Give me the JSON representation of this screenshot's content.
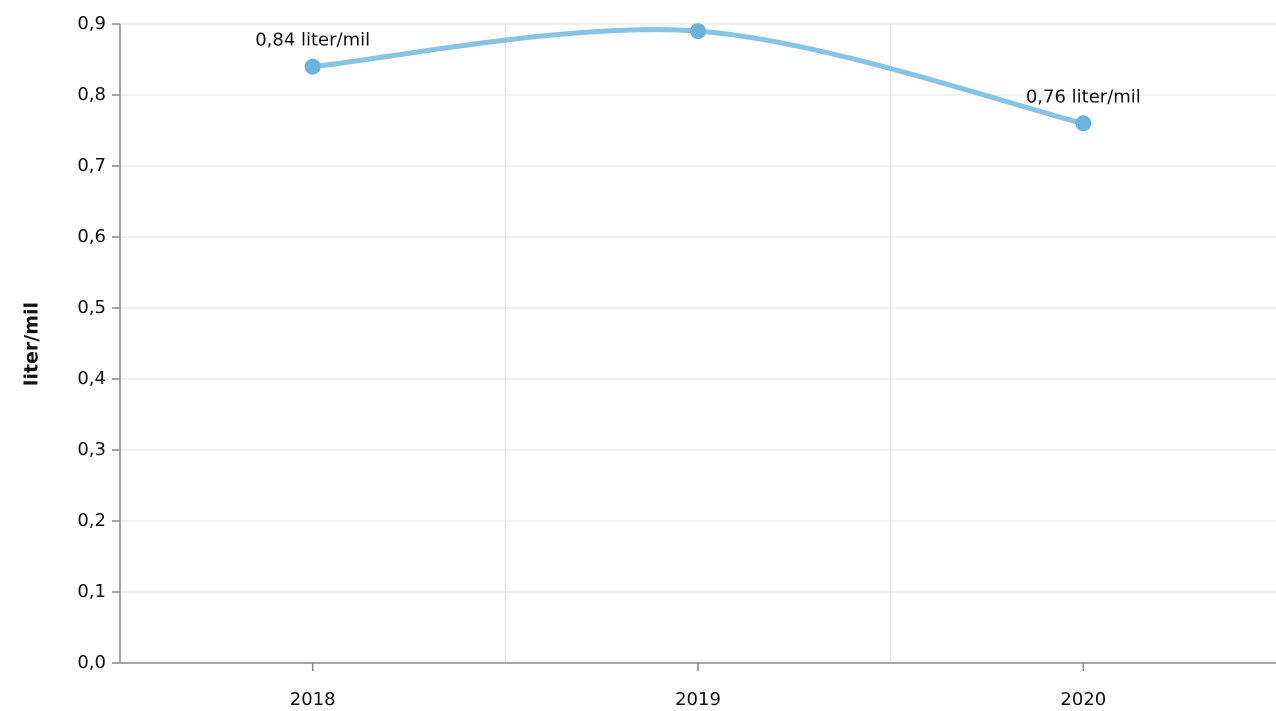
{
  "chart_data": {
    "type": "line",
    "y_label": "liter/mil",
    "categories": [
      "2018",
      "2019",
      "2020"
    ],
    "series": [
      {
        "name": "liter/mil",
        "color": "#87c3e3",
        "marker_color": "#6ab3da",
        "values": [
          0.84,
          0.89,
          0.76
        ],
        "value_labels": [
          "0,84 liter/mil",
          null,
          "0,76 liter/mil"
        ]
      }
    ],
    "ylim": [
      0,
      0.9
    ],
    "yticks": [
      {
        "value": 0,
        "label": "0,0"
      },
      {
        "value": 0.1,
        "label": "0,1"
      },
      {
        "value": 0.2,
        "label": "0,2"
      },
      {
        "value": 0.3,
        "label": "0,3"
      },
      {
        "value": 0.4,
        "label": "0,4"
      },
      {
        "value": 0.5,
        "label": "0,5"
      },
      {
        "value": 0.6,
        "label": "0,6"
      },
      {
        "value": 0.7,
        "label": "0,7"
      },
      {
        "value": 0.8,
        "label": "0,8"
      },
      {
        "value": 0.9,
        "label": "0,9"
      }
    ],
    "grid": true
  }
}
